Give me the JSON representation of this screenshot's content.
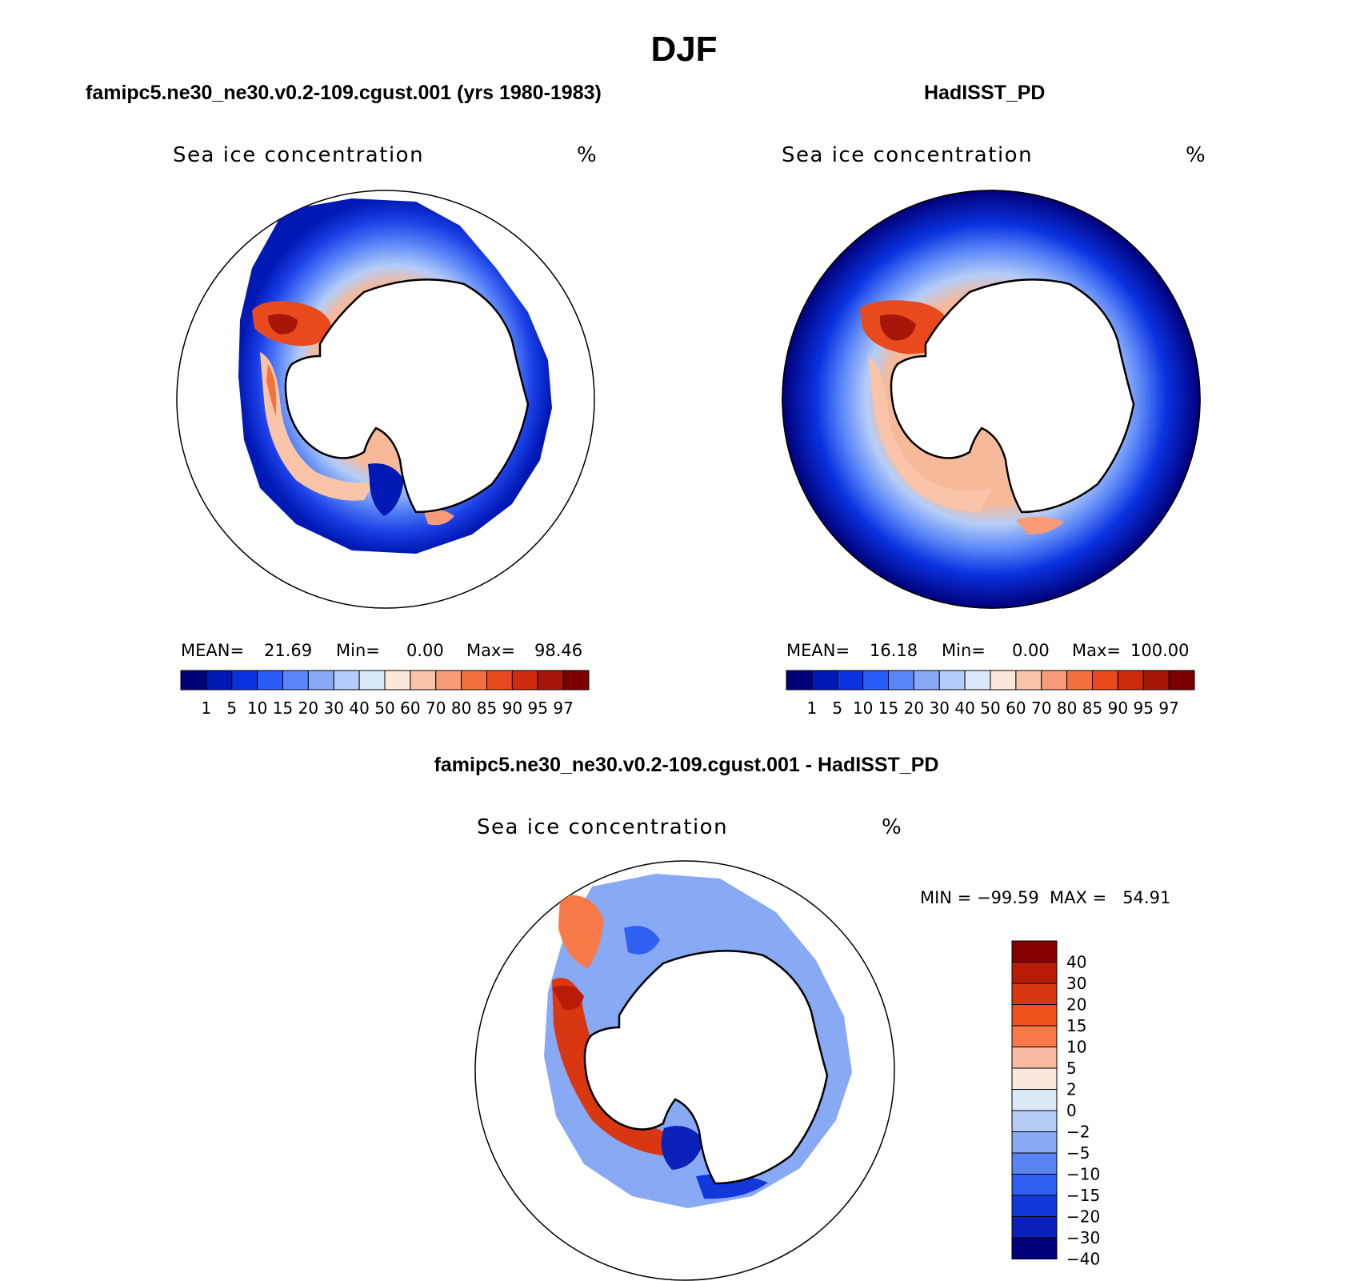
{
  "title": "DJF",
  "panels": {
    "model": {
      "header": "famipc5.ne30_ne30.v0.2-109.cgust.001 (yrs 1980-1983)",
      "variable": "Sea ice concentration",
      "units": "%",
      "stats": {
        "mean_label": "MEAN=",
        "mean": "21.69",
        "min_label": "Min=",
        "min": "0.00",
        "max_label": "Max=",
        "max": "98.46"
      }
    },
    "obs": {
      "header": "HadISST_PD",
      "variable": "Sea ice concentration",
      "units": "%",
      "stats": {
        "mean_label": "MEAN=",
        "mean": "16.18",
        "min_label": "Min=",
        "min": "0.00",
        "max_label": "Max=",
        "max": "100.00"
      }
    },
    "diff": {
      "header": "famipc5.ne30_ne30.v0.2-109.cgust.001 - HadISST_PD",
      "variable": "Sea ice concentration",
      "units": "%",
      "minmax": "MIN = −99.59  MAX =   54.91"
    }
  },
  "colorbar_main": {
    "labels": [
      "1",
      "5",
      "10",
      "15",
      "20",
      "30",
      "40",
      "50",
      "60",
      "70",
      "80",
      "85",
      "90",
      "95",
      "97"
    ],
    "colors": [
      "#00007a",
      "#0018b4",
      "#0a32e0",
      "#2a5cf8",
      "#5a86f8",
      "#88aaf6",
      "#b4cdf8",
      "#dbe8f8",
      "#fde9dc",
      "#f9c4a8",
      "#f79b78",
      "#f2713f",
      "#e84a1e",
      "#cc2a08",
      "#a8160a",
      "#7a0000"
    ]
  },
  "colorbar_diff": {
    "labels": [
      "40",
      "30",
      "20",
      "15",
      "10",
      "5",
      "2",
      "0",
      "−2",
      "−5",
      "−10",
      "−15",
      "−20",
      "−30",
      "−40"
    ],
    "colors": [
      "#870000",
      "#b81c06",
      "#d93612",
      "#f0501c",
      "#f77a48",
      "#f9bca2",
      "#fce8dc",
      "#dbe9f8",
      "#b4ccf6",
      "#88a9f4",
      "#5a84f4",
      "#3060f2",
      "#1238dc",
      "#0a20b8",
      "#00007c"
    ]
  }
}
